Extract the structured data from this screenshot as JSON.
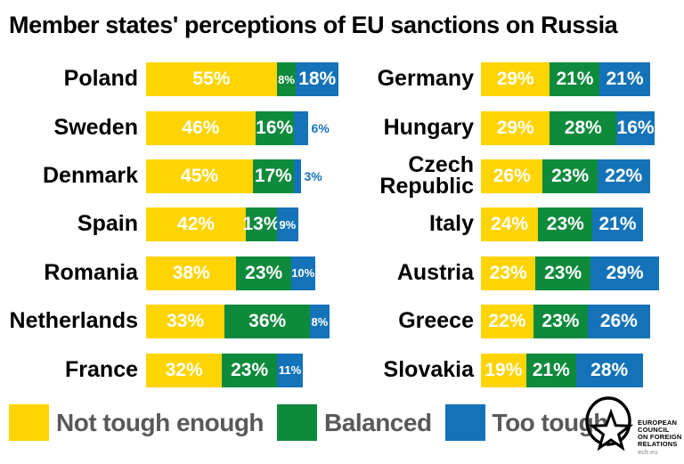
{
  "title": "Member states' perceptions of EU sanctions on Russia",
  "legend": [
    {
      "label": "Not tough enough",
      "color": "#FFD400"
    },
    {
      "label": "Balanced",
      "color": "#0E8A3C"
    },
    {
      "label": "Too tough",
      "color": "#1473B8"
    }
  ],
  "logo": {
    "lines": [
      "EUROPEAN",
      "COUNCIL",
      "ON FOREIGN",
      "RELATIONS"
    ],
    "url_text": "ecfr.eu"
  },
  "chart_data": {
    "type": "bar",
    "orientation": "horizontal",
    "stacked": true,
    "unit": "%",
    "title": "Member states' perceptions of EU sanctions on Russia",
    "series_names": [
      "Not tough enough",
      "Balanced",
      "Too tough"
    ],
    "xlim": [
      0,
      100
    ],
    "grid": false,
    "legend_position": "bottom",
    "columns": [
      {
        "rows": [
          {
            "name": "Poland",
            "values": [
              55,
              8,
              18
            ]
          },
          {
            "name": "Sweden",
            "values": [
              46,
              16,
              6
            ]
          },
          {
            "name": "Denmark",
            "values": [
              45,
              17,
              3
            ]
          },
          {
            "name": "Spain",
            "values": [
              42,
              13,
              9
            ]
          },
          {
            "name": "Romania",
            "values": [
              38,
              23,
              10
            ]
          },
          {
            "name": "Netherlands",
            "values": [
              33,
              36,
              8
            ]
          },
          {
            "name": "France",
            "values": [
              32,
              23,
              11
            ]
          }
        ]
      },
      {
        "rows": [
          {
            "name": "Germany",
            "values": [
              29,
              21,
              21
            ]
          },
          {
            "name": "Hungary",
            "values": [
              29,
              28,
              16
            ]
          },
          {
            "name": "Czech Republic",
            "values": [
              26,
              23,
              22
            ]
          },
          {
            "name": "Italy",
            "values": [
              24,
              23,
              21
            ]
          },
          {
            "name": "Austria",
            "values": [
              23,
              23,
              29
            ]
          },
          {
            "name": "Greece",
            "values": [
              22,
              23,
              26
            ]
          },
          {
            "name": "Slovakia",
            "values": [
              19,
              21,
              28
            ]
          }
        ]
      }
    ]
  }
}
